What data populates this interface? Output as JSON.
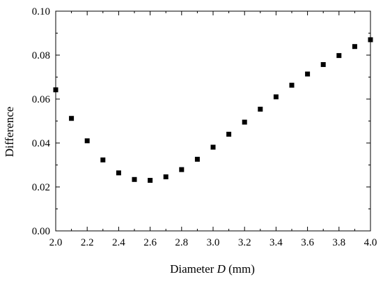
{
  "chart_data": {
    "type": "scatter",
    "title": "",
    "xlabel_prefix": "Diameter ",
    "xlabel_var": "D",
    "xlabel_suffix": " (mm)",
    "ylabel": "Difference",
    "xlim": [
      2.0,
      4.0
    ],
    "ylim": [
      0.0,
      0.1
    ],
    "xticks": [
      "2.0",
      "2.2",
      "2.4",
      "2.6",
      "2.8",
      "3.0",
      "3.2",
      "3.4",
      "3.6",
      "3.8",
      "4.0"
    ],
    "yticks": [
      "0.00",
      "0.02",
      "0.04",
      "0.06",
      "0.08",
      "0.10"
    ],
    "grid": false,
    "marker": "square",
    "marker_color": "#000000",
    "series": [
      {
        "x": [
          2.0,
          2.1,
          2.2,
          2.3,
          2.4,
          2.5,
          2.6,
          2.7,
          2.8,
          2.9,
          3.0,
          3.1,
          3.2,
          3.3,
          3.4,
          3.5,
          3.6,
          3.7,
          3.8,
          3.9,
          4.0
        ],
        "y": [
          0.0642,
          0.0512,
          0.041,
          0.0323,
          0.0264,
          0.0234,
          0.023,
          0.0246,
          0.0279,
          0.0326,
          0.0381,
          0.044,
          0.0495,
          0.0554,
          0.061,
          0.0663,
          0.0714,
          0.0757,
          0.0798,
          0.0839,
          0.087
        ]
      }
    ]
  }
}
